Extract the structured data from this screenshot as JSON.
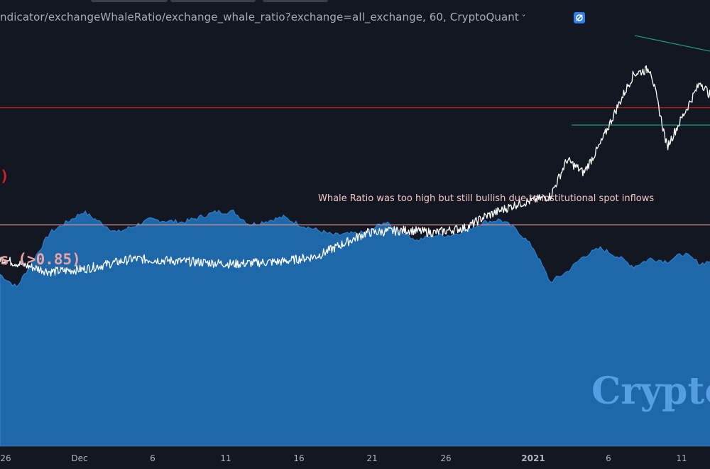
{
  "header": {
    "symbol_text": "ndicator/exchangeWhaleRatio/exchange_whale_ratio?exchange=all_exchange, 60, CryptoQuant",
    "chevron": "˅"
  },
  "colors": {
    "background": "#131722",
    "price_line": "#ffffff",
    "area_fill": "#1e67a9",
    "area_top": "#2f7fd0",
    "red_level": "#c41c1c",
    "pink_level": "#d99b9b",
    "trendline": "#1f9a7a",
    "watermark": "#5aa0e6"
  },
  "levels": {
    "red_label": ")",
    "pink_label": "s (>0.85)"
  },
  "annotation": "Whale Ratio was too high but still bullish due to institutional spot inflows",
  "watermark": "Crypto",
  "chart_data": {
    "type": "line",
    "x_axis_ticks": [
      "26",
      "Dec",
      "6",
      "11",
      "16",
      "21",
      "26",
      "2021",
      "6",
      "11"
    ],
    "grid": false,
    "series": [
      {
        "kind": "line",
        "x": [
          0,
          3,
          5,
          8,
          11,
          14,
          17,
          19,
          22,
          24.5,
          26,
          28,
          29,
          31,
          33,
          34,
          35,
          36,
          37,
          38,
          39,
          40,
          42,
          43
        ],
        "values": [
          0.72,
          0.67,
          0.68,
          0.72,
          0.71,
          0.7,
          0.71,
          0.73,
          0.82,
          0.83,
          0.82,
          0.84,
          0.88,
          0.93,
          0.96,
          1.1,
          1.05,
          1.16,
          1.3,
          1.43,
          1.45,
          1.15,
          1.4,
          1.31
        ]
      },
      {
        "kind": "area",
        "x": [
          0,
          1,
          3,
          5,
          7,
          9,
          11,
          13,
          14,
          15,
          17,
          18,
          20,
          22,
          23,
          24,
          25,
          26,
          27,
          28,
          29,
          30,
          31,
          32,
          33,
          34,
          35,
          36,
          37,
          38,
          39,
          40,
          41,
          42,
          43
        ],
        "values": [
          0.66,
          0.61,
          0.82,
          0.9,
          0.82,
          0.87,
          0.86,
          0.9,
          0.9,
          0.85,
          0.88,
          0.85,
          0.81,
          0.82,
          0.86,
          0.83,
          0.79,
          0.81,
          0.81,
          0.83,
          0.86,
          0.87,
          0.83,
          0.76,
          0.63,
          0.67,
          0.73,
          0.76,
          0.73,
          0.69,
          0.72,
          0.71,
          0.74,
          0.7,
          0.72
        ]
      }
    ],
    "horizontal_levels": [
      {
        "name": "red",
        "value": 1.3
      },
      {
        "name": "pink",
        "value": 0.85
      }
    ]
  }
}
